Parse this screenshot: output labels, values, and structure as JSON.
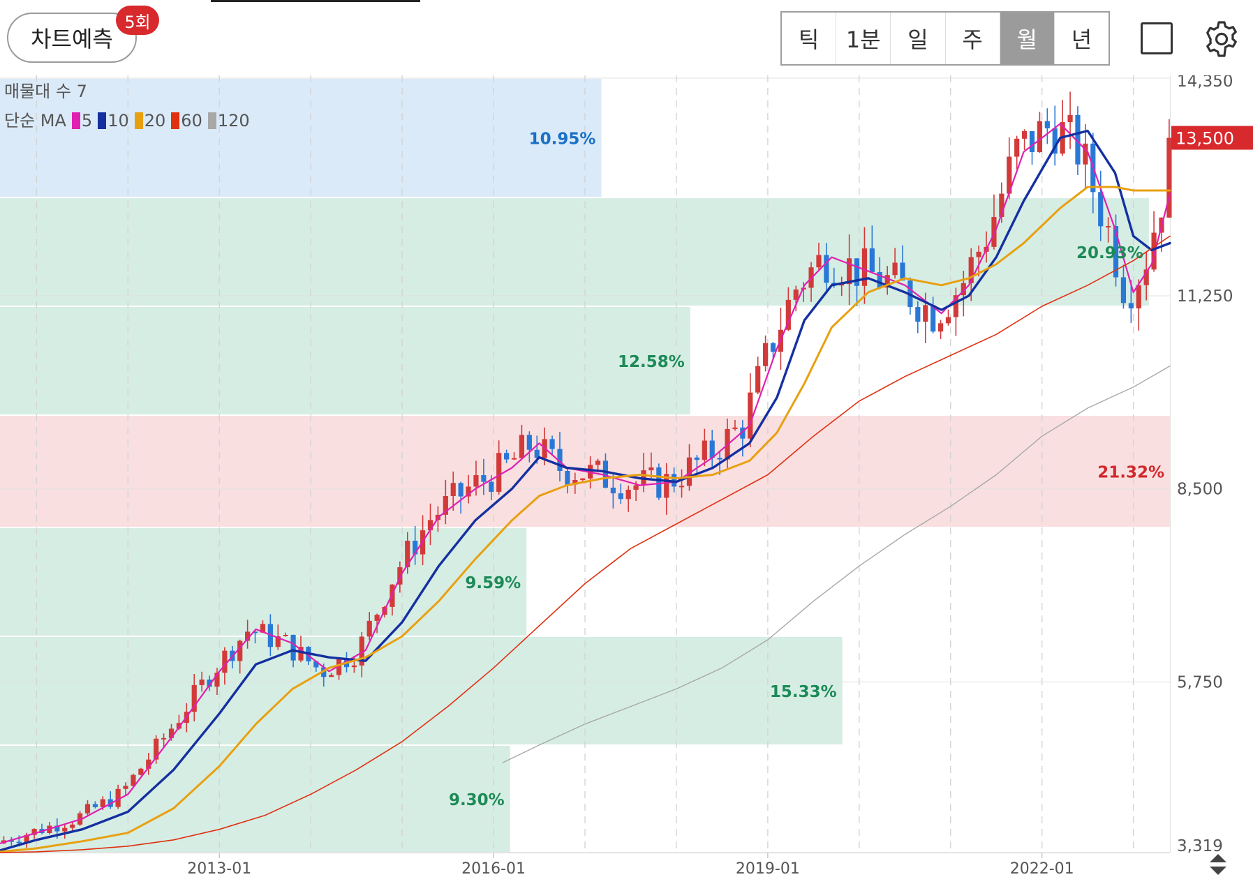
{
  "header": {
    "predict_label": "차트예측",
    "predict_badge": "5회",
    "periods": [
      {
        "label": "틱",
        "active": false
      },
      {
        "label": "1분",
        "active": false
      },
      {
        "label": "일",
        "active": false
      },
      {
        "label": "주",
        "active": false
      },
      {
        "label": "월",
        "active": true
      },
      {
        "label": "년",
        "active": false
      }
    ]
  },
  "legend": {
    "volume_profile_label": "매물대 수 7",
    "ma_label": "단순 MA",
    "ma_periods": [
      {
        "period": "5",
        "color": "#e020b0"
      },
      {
        "period": "10",
        "color": "#1430a0"
      },
      {
        "period": "20",
        "color": "#e8a010"
      },
      {
        "period": "60",
        "color": "#e03010"
      },
      {
        "period": "120",
        "color": "#a8a8a8"
      }
    ]
  },
  "chart_data": {
    "type": "candlestick",
    "y_axis_ticks": [
      14350,
      11250,
      8500,
      5750,
      3319
    ],
    "y_range": [
      3319,
      14350
    ],
    "x_tick_labels": [
      {
        "label": "2013-01",
        "time": 2013.0
      },
      {
        "label": "2016-01",
        "time": 2016.0
      },
      {
        "label": "2019-01",
        "time": 2019.0
      },
      {
        "label": "2022-01",
        "time": 2022.0
      }
    ],
    "x_range": [
      2010.6,
      2023.4
    ],
    "current_price": "13,500",
    "current_price_value": 13500,
    "volume_profile": [
      {
        "from": 3319,
        "to": 4850,
        "label": "9.30%",
        "extent": 0.436,
        "color": "#d6ede4",
        "label_color": "#1e8a57"
      },
      {
        "from": 4850,
        "to": 6400,
        "label": "15.33%",
        "extent": 0.72,
        "color": "#d6ede4",
        "label_color": "#1e8a57"
      },
      {
        "from": 6400,
        "to": 7950,
        "label": "9.59%",
        "extent": 0.45,
        "color": "#d6ede4",
        "label_color": "#1e8a57"
      },
      {
        "from": 7950,
        "to": 9550,
        "label": "21.32%",
        "extent": 1.0,
        "color": "#f9dfe0",
        "label_color": "#d0282c"
      },
      {
        "from": 9550,
        "to": 11100,
        "label": "12.58%",
        "extent": 0.59,
        "color": "#d6ede4",
        "label_color": "#1e8a57"
      },
      {
        "from": 11100,
        "to": 12650,
        "label": "20.93%",
        "extent": 0.982,
        "color": "#d6ede4",
        "label_color": "#1e8a57"
      },
      {
        "from": 12650,
        "to": 14350,
        "label": "10.95%",
        "extent": 0.514,
        "color": "#dbeaf8",
        "label_color": "#1a70c8"
      }
    ],
    "ma_lines": [
      {
        "period": "5",
        "color": "#e020b0",
        "width": 2.2,
        "points": [
          [
            2010.6,
            3450
          ],
          [
            2011.0,
            3600
          ],
          [
            2011.5,
            3800
          ],
          [
            2012.0,
            4150
          ],
          [
            2012.5,
            5000
          ],
          [
            2013.0,
            5900
          ],
          [
            2013.4,
            6500
          ],
          [
            2013.8,
            6300
          ],
          [
            2014.2,
            5900
          ],
          [
            2014.6,
            6200
          ],
          [
            2015.0,
            7300
          ],
          [
            2015.4,
            8100
          ],
          [
            2015.8,
            8500
          ],
          [
            2016.2,
            8800
          ],
          [
            2016.5,
            9150
          ],
          [
            2016.8,
            8800
          ],
          [
            2017.2,
            8700
          ],
          [
            2017.6,
            8550
          ],
          [
            2018.0,
            8600
          ],
          [
            2018.4,
            8950
          ],
          [
            2018.8,
            9400
          ],
          [
            2019.1,
            10500
          ],
          [
            2019.4,
            11400
          ],
          [
            2019.7,
            11800
          ],
          [
            2020.1,
            11600
          ],
          [
            2020.5,
            11400
          ],
          [
            2020.9,
            11000
          ],
          [
            2021.2,
            11400
          ],
          [
            2021.5,
            12200
          ],
          [
            2021.8,
            13300
          ],
          [
            2022.2,
            13700
          ],
          [
            2022.5,
            13300
          ],
          [
            2022.8,
            12200
          ],
          [
            2023.0,
            11300
          ],
          [
            2023.2,
            11700
          ],
          [
            2023.4,
            12700
          ]
        ]
      },
      {
        "period": "10",
        "color": "#1430a0",
        "width": 3.4,
        "points": [
          [
            2010.6,
            3350
          ],
          [
            2011.0,
            3500
          ],
          [
            2011.5,
            3650
          ],
          [
            2012.0,
            3900
          ],
          [
            2012.5,
            4500
          ],
          [
            2013.0,
            5300
          ],
          [
            2013.4,
            6000
          ],
          [
            2013.8,
            6200
          ],
          [
            2014.2,
            6100
          ],
          [
            2014.6,
            6050
          ],
          [
            2015.0,
            6600
          ],
          [
            2015.4,
            7400
          ],
          [
            2015.8,
            8050
          ],
          [
            2016.2,
            8500
          ],
          [
            2016.5,
            8950
          ],
          [
            2016.8,
            8800
          ],
          [
            2017.2,
            8750
          ],
          [
            2017.6,
            8650
          ],
          [
            2018.0,
            8600
          ],
          [
            2018.4,
            8800
          ],
          [
            2018.8,
            9150
          ],
          [
            2019.1,
            9800
          ],
          [
            2019.4,
            10900
          ],
          [
            2019.7,
            11400
          ],
          [
            2020.1,
            11500
          ],
          [
            2020.5,
            11300
          ],
          [
            2020.9,
            11050
          ],
          [
            2021.2,
            11250
          ],
          [
            2021.5,
            11800
          ],
          [
            2021.8,
            12600
          ],
          [
            2022.2,
            13500
          ],
          [
            2022.5,
            13600
          ],
          [
            2022.8,
            13000
          ],
          [
            2023.0,
            12100
          ],
          [
            2023.2,
            11900
          ],
          [
            2023.4,
            12000
          ]
        ]
      },
      {
        "period": "20",
        "color": "#e8a010",
        "width": 3.0,
        "points": [
          [
            2010.6,
            3330
          ],
          [
            2011.0,
            3380
          ],
          [
            2011.5,
            3480
          ],
          [
            2012.0,
            3600
          ],
          [
            2012.5,
            3950
          ],
          [
            2013.0,
            4550
          ],
          [
            2013.4,
            5150
          ],
          [
            2013.8,
            5650
          ],
          [
            2014.2,
            5950
          ],
          [
            2014.6,
            6100
          ],
          [
            2015.0,
            6400
          ],
          [
            2015.4,
            6900
          ],
          [
            2015.8,
            7500
          ],
          [
            2016.2,
            8050
          ],
          [
            2016.5,
            8400
          ],
          [
            2016.8,
            8550
          ],
          [
            2017.2,
            8650
          ],
          [
            2017.6,
            8700
          ],
          [
            2018.0,
            8650
          ],
          [
            2018.4,
            8700
          ],
          [
            2018.8,
            8900
          ],
          [
            2019.1,
            9300
          ],
          [
            2019.4,
            10000
          ],
          [
            2019.7,
            10800
          ],
          [
            2020.1,
            11300
          ],
          [
            2020.5,
            11500
          ],
          [
            2020.9,
            11400
          ],
          [
            2021.2,
            11500
          ],
          [
            2021.5,
            11700
          ],
          [
            2021.8,
            12000
          ],
          [
            2022.2,
            12500
          ],
          [
            2022.5,
            12800
          ],
          [
            2022.8,
            12800
          ],
          [
            2023.0,
            12750
          ],
          [
            2023.2,
            12750
          ],
          [
            2023.4,
            12750
          ]
        ]
      },
      {
        "period": "60",
        "color": "#e03010",
        "width": 1.6,
        "points": [
          [
            2010.6,
            3319
          ],
          [
            2011.0,
            3330
          ],
          [
            2011.5,
            3360
          ],
          [
            2012.0,
            3410
          ],
          [
            2012.5,
            3500
          ],
          [
            2013.0,
            3650
          ],
          [
            2013.5,
            3850
          ],
          [
            2014.0,
            4150
          ],
          [
            2014.5,
            4500
          ],
          [
            2015.0,
            4900
          ],
          [
            2015.5,
            5400
          ],
          [
            2016.0,
            5950
          ],
          [
            2016.5,
            6550
          ],
          [
            2017.0,
            7150
          ],
          [
            2017.5,
            7650
          ],
          [
            2018.0,
            8000
          ],
          [
            2018.5,
            8350
          ],
          [
            2019.0,
            8700
          ],
          [
            2019.5,
            9250
          ],
          [
            2020.0,
            9750
          ],
          [
            2020.5,
            10100
          ],
          [
            2021.0,
            10400
          ],
          [
            2021.5,
            10700
          ],
          [
            2022.0,
            11100
          ],
          [
            2022.5,
            11400
          ],
          [
            2023.0,
            11750
          ],
          [
            2023.4,
            12100
          ]
        ]
      },
      {
        "period": "120",
        "color": "#a8a8a8",
        "width": 1.4,
        "points": [
          [
            2016.1,
            4600
          ],
          [
            2016.5,
            4850
          ],
          [
            2017.0,
            5150
          ],
          [
            2017.5,
            5400
          ],
          [
            2018.0,
            5650
          ],
          [
            2018.5,
            5950
          ],
          [
            2019.0,
            6350
          ],
          [
            2019.5,
            6900
          ],
          [
            2020.0,
            7400
          ],
          [
            2020.5,
            7850
          ],
          [
            2021.0,
            8250
          ],
          [
            2021.5,
            8700
          ],
          [
            2022.0,
            9250
          ],
          [
            2022.5,
            9650
          ],
          [
            2023.0,
            9950
          ],
          [
            2023.4,
            10250
          ]
        ]
      }
    ]
  }
}
